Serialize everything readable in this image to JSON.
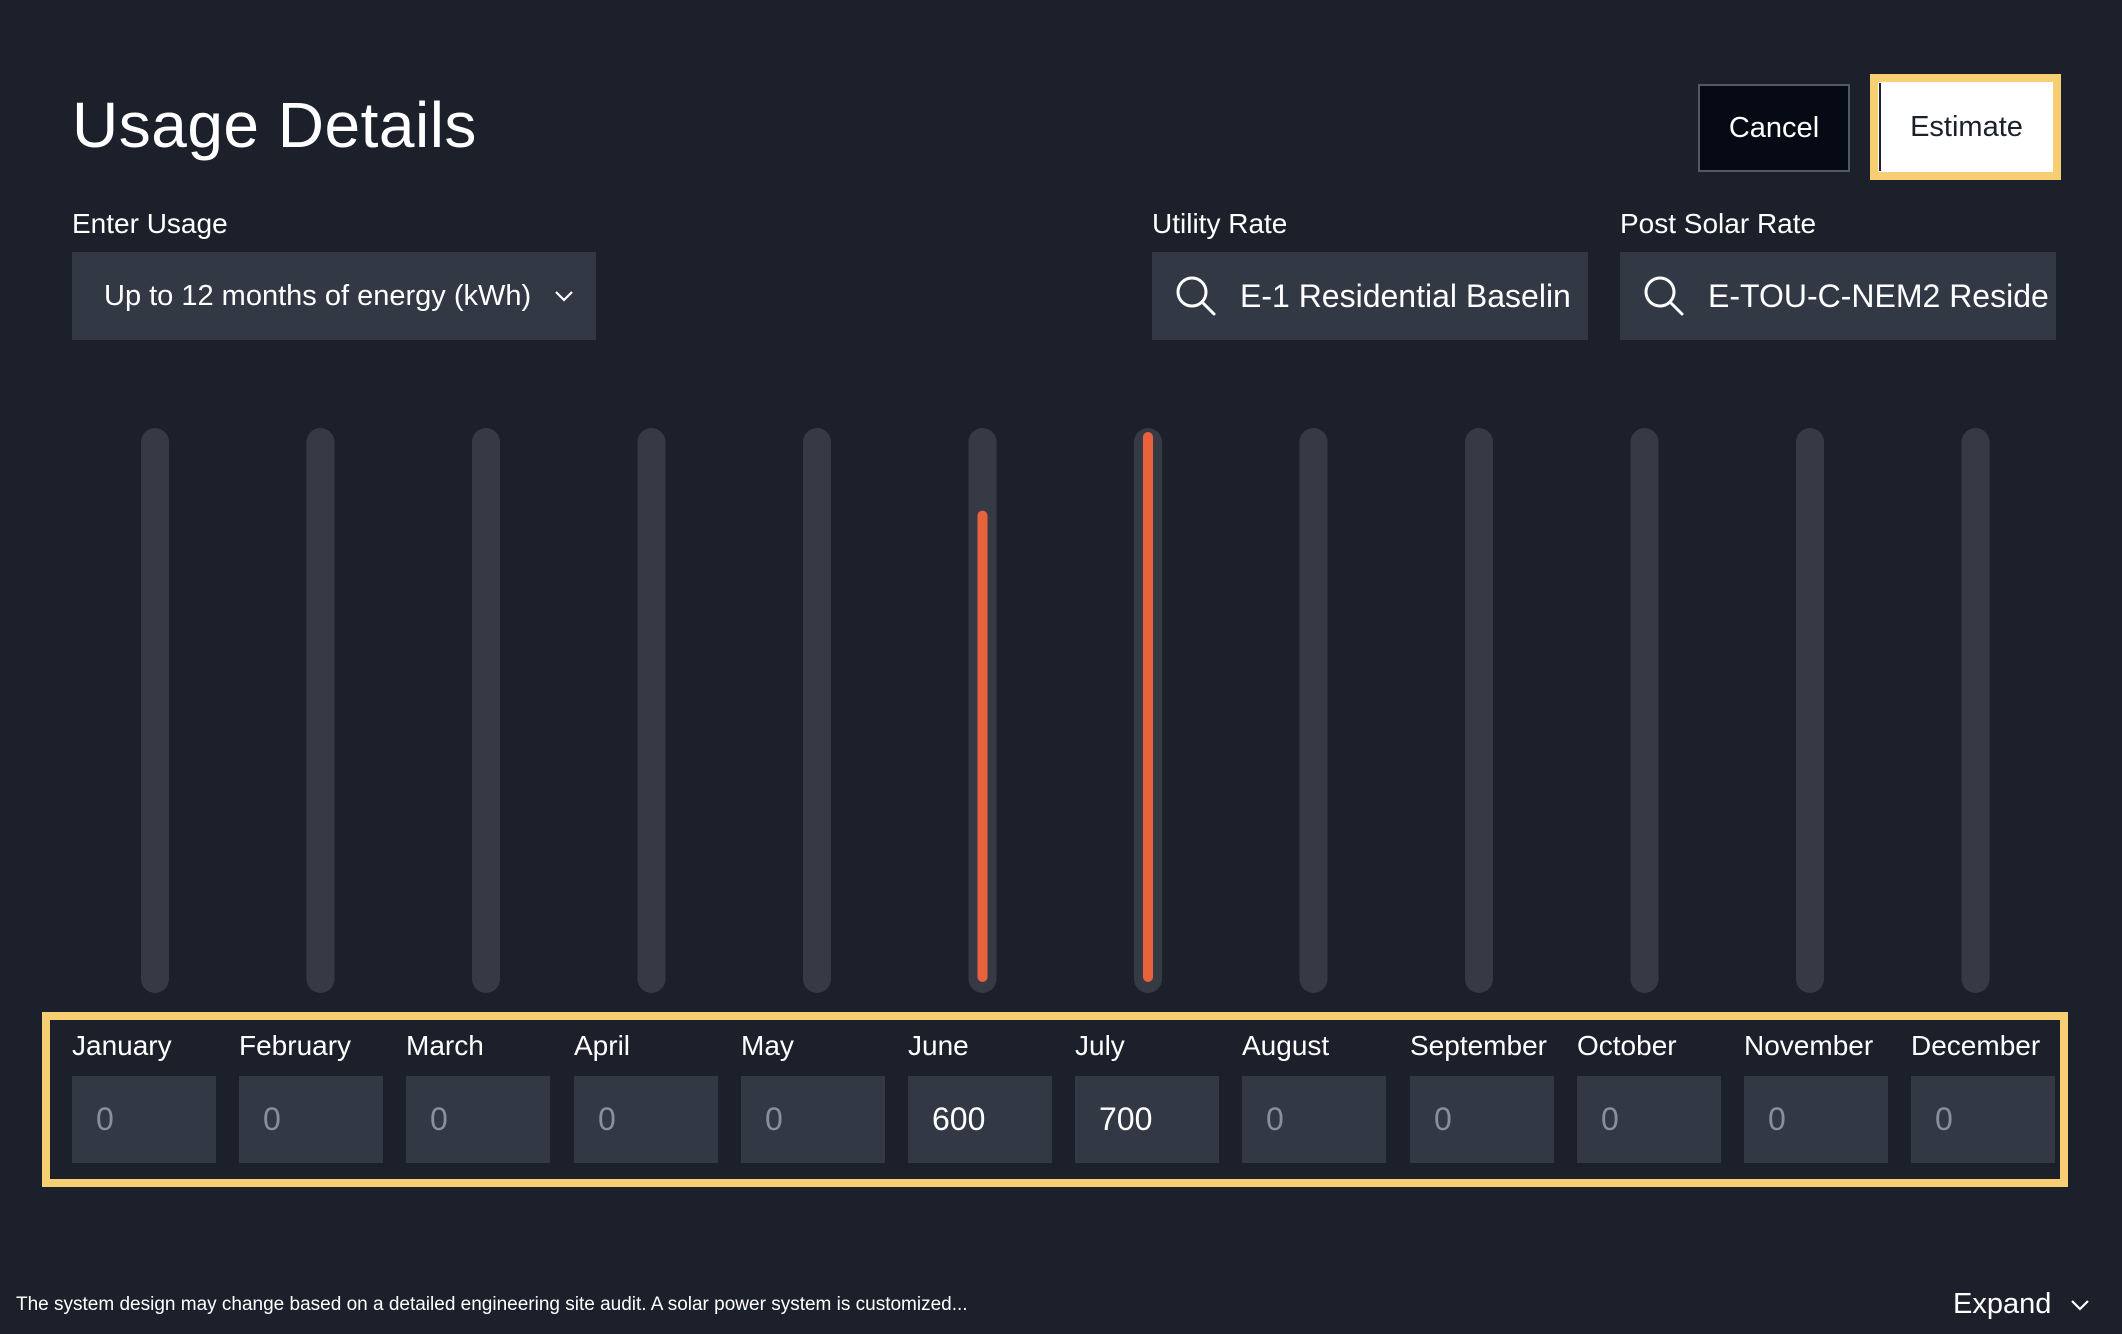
{
  "header": {
    "title": "Usage Details",
    "cancel_label": "Cancel",
    "estimate_label": "Estimate"
  },
  "usage": {
    "label": "Enter Usage",
    "selected": "Up to 12 months of energy (kWh)",
    "icon": "chevron-down-icon"
  },
  "utility_rate": {
    "label": "Utility Rate",
    "value": "E-1 Residential Baselin",
    "icon": "search-icon"
  },
  "post_solar_rate": {
    "label": "Post Solar Rate",
    "value": "E-TOU-C-NEM2 Reside",
    "icon": "search-icon"
  },
  "months": [
    {
      "label": "January",
      "value": "0"
    },
    {
      "label": "February",
      "value": "0"
    },
    {
      "label": "March",
      "value": "0"
    },
    {
      "label": "April",
      "value": "0"
    },
    {
      "label": "May",
      "value": "0"
    },
    {
      "label": "June",
      "value": "600"
    },
    {
      "label": "July",
      "value": "700"
    },
    {
      "label": "August",
      "value": "0"
    },
    {
      "label": "September",
      "value": "0"
    },
    {
      "label": "October",
      "value": "0"
    },
    {
      "label": "November",
      "value": "0"
    },
    {
      "label": "December",
      "value": "0"
    }
  ],
  "chart_data": {
    "type": "bar",
    "categories": [
      "January",
      "February",
      "March",
      "April",
      "May",
      "June",
      "July",
      "August",
      "September",
      "October",
      "November",
      "December"
    ],
    "values": [
      0,
      0,
      0,
      0,
      0,
      600,
      700,
      0,
      0,
      0,
      0,
      0
    ],
    "ylim": [
      0,
      700
    ],
    "colors": {
      "track": "#353a45",
      "bar": "#e8623c"
    }
  },
  "footer": {
    "note": "The system design may change based on a detailed engineering site audit. A solar power system is customized...",
    "expand_label": "Expand",
    "expand_icon": "chevron-down-icon"
  },
  "colors": {
    "background": "#1b202a",
    "field": "#333944",
    "highlight": "#f7cf72",
    "accent": "#e8623c"
  }
}
